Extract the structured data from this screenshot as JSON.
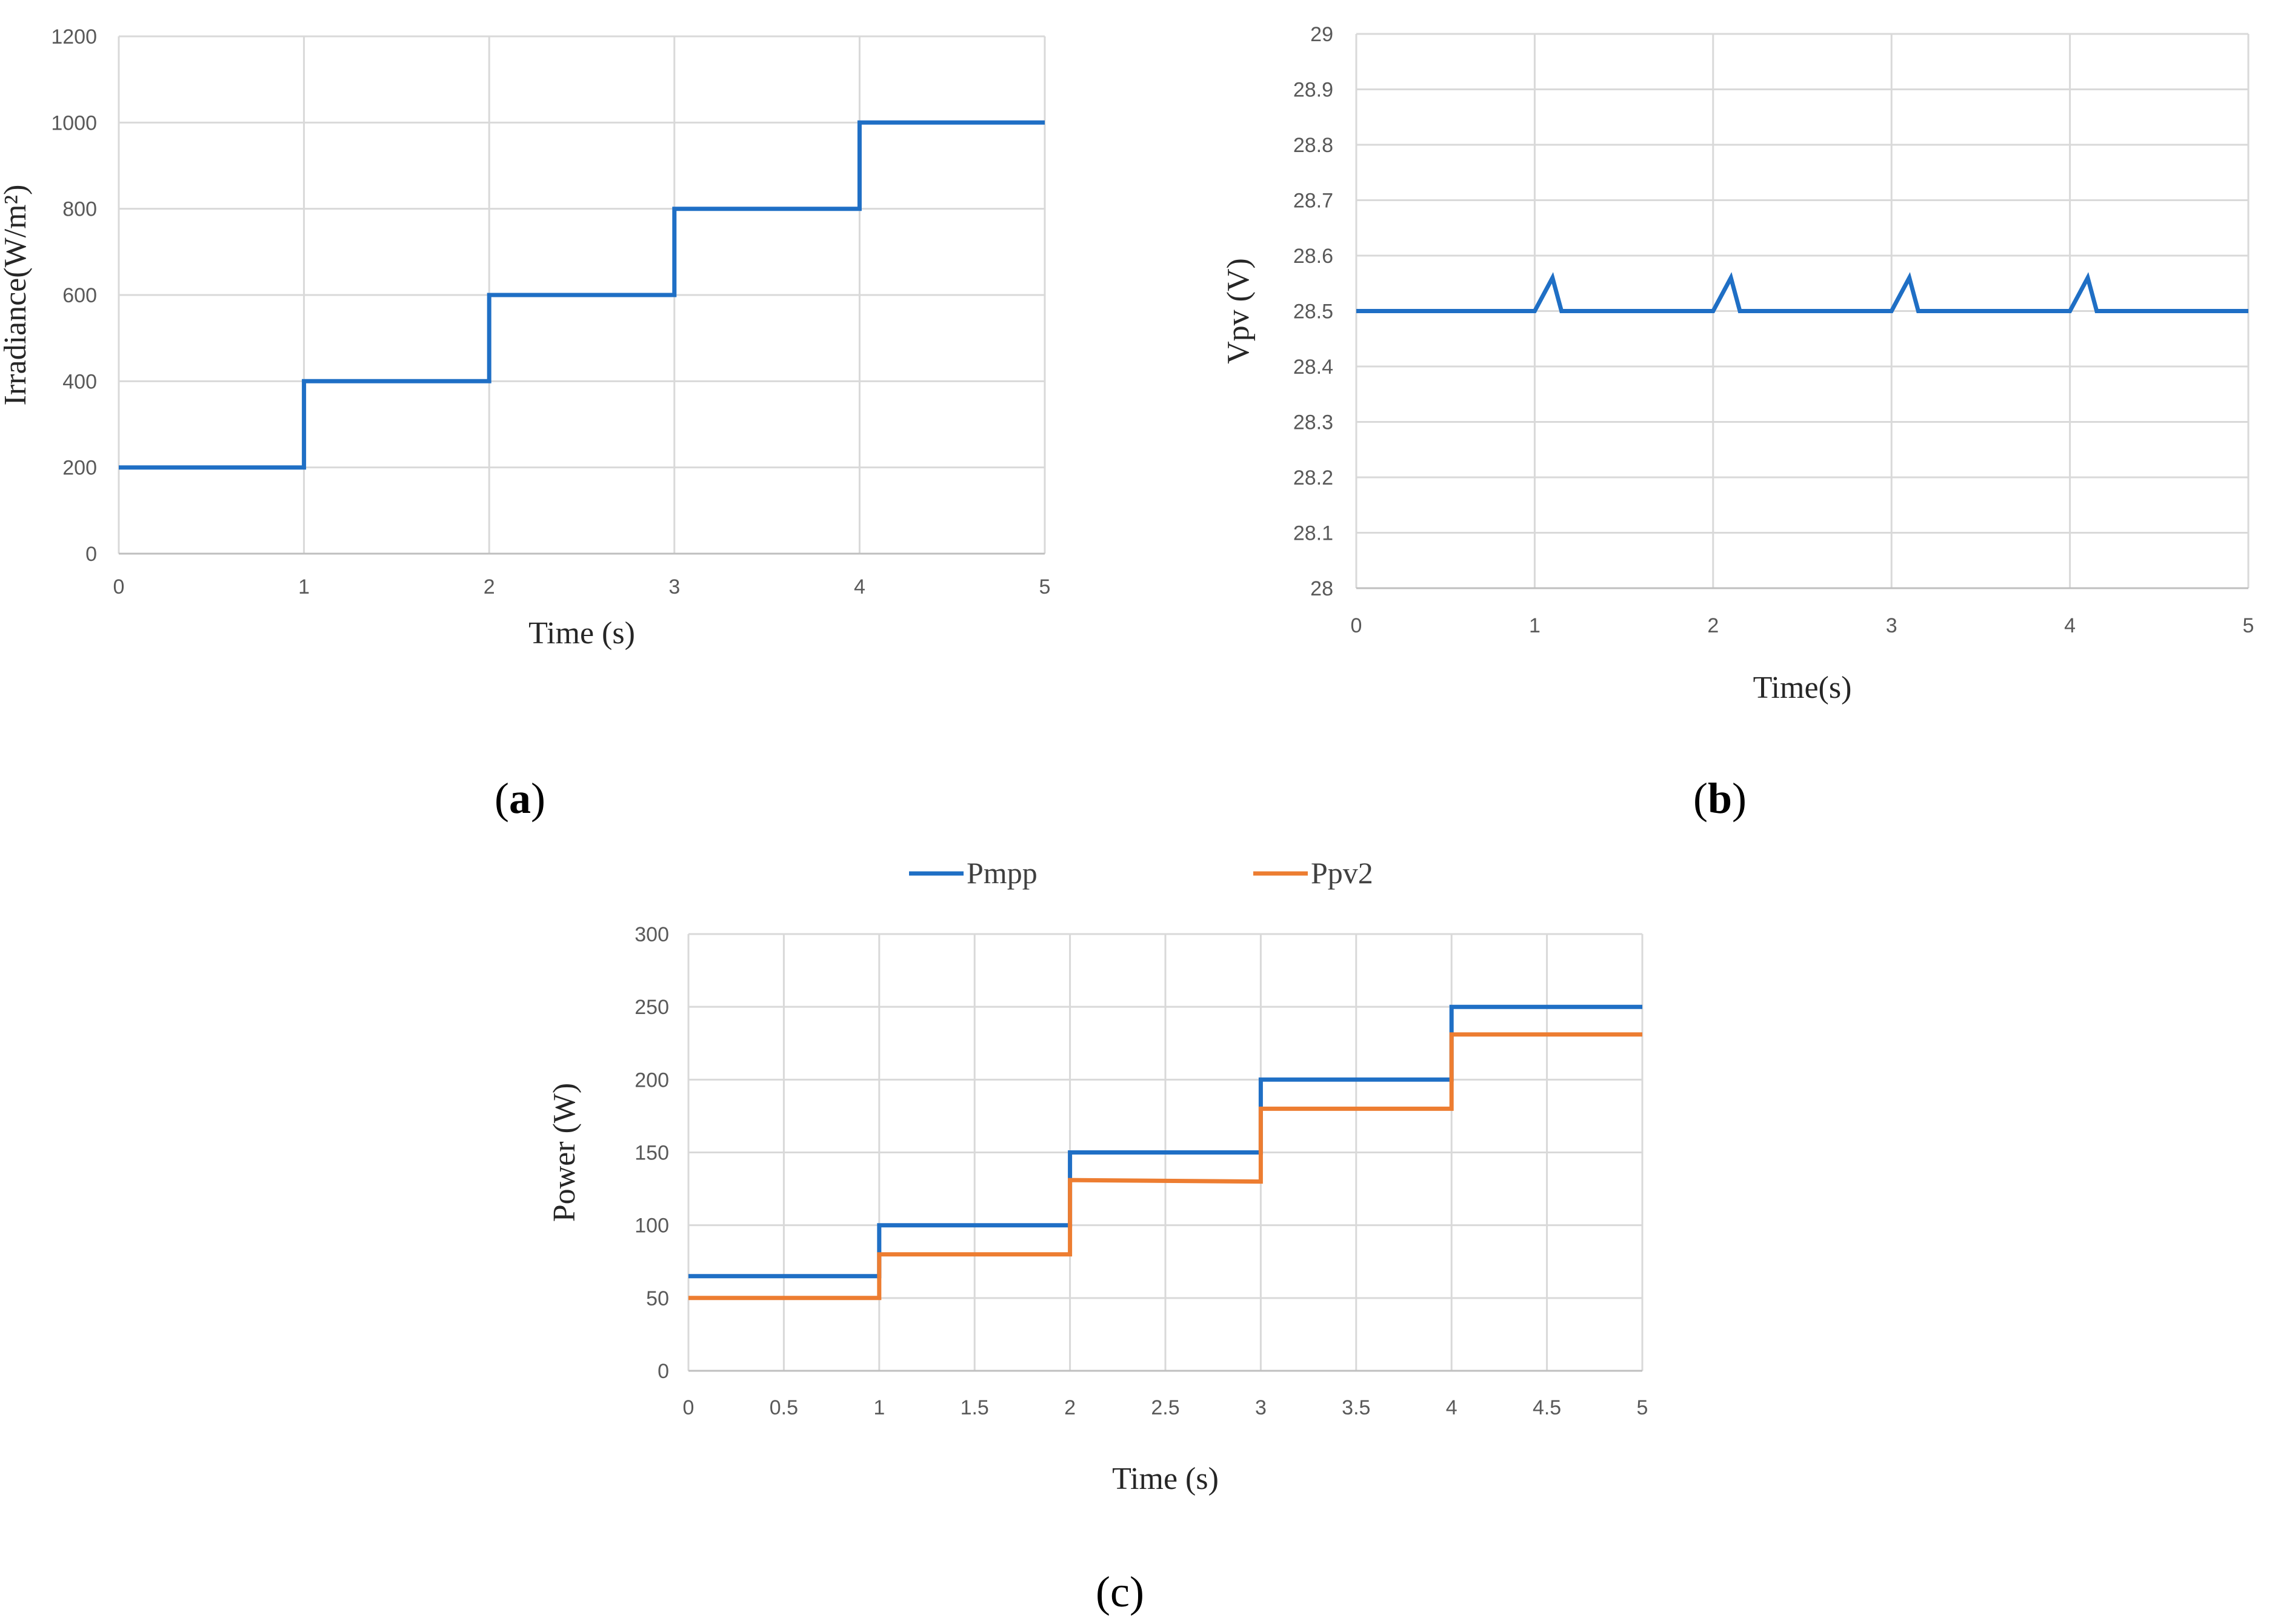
{
  "chart_data": [
    {
      "id": "a",
      "type": "line",
      "caption": "a",
      "xlabel": "Time (s)",
      "ylabel": "Irradiance(W/m²)",
      "xlim": [
        0,
        5
      ],
      "ylim": [
        0,
        1200
      ],
      "xticks": [
        0,
        1,
        2,
        3,
        4,
        5
      ],
      "yticks": [
        0,
        200,
        400,
        600,
        800,
        1000,
        1200
      ],
      "grid": true,
      "legend": "none",
      "series": [
        {
          "name": "Irradiance",
          "color": "#1f6fc5",
          "x": [
            0,
            1,
            1,
            2,
            2,
            3,
            3,
            4,
            4,
            5
          ],
          "y": [
            200,
            200,
            400,
            400,
            600,
            600,
            800,
            800,
            1000,
            1000
          ]
        }
      ]
    },
    {
      "id": "b",
      "type": "line",
      "caption": "b",
      "xlabel": "Time(s)",
      "ylabel": "Vpv (V)",
      "xlim": [
        0,
        5
      ],
      "ylim": [
        28,
        29
      ],
      "xticks": [
        0,
        1,
        2,
        3,
        4,
        5
      ],
      "yticks": [
        28,
        28.1,
        28.2,
        28.3,
        28.4,
        28.5,
        28.6,
        28.7,
        28.8,
        28.9,
        29
      ],
      "grid": true,
      "legend": "none",
      "series": [
        {
          "name": "Vpv",
          "color": "#1f6fc5",
          "x": [
            0,
            1,
            1.1,
            1.15,
            2,
            2.1,
            2.15,
            3,
            3.1,
            3.15,
            4,
            4.1,
            4.15,
            5
          ],
          "y": [
            28.5,
            28.5,
            28.56,
            28.5,
            28.5,
            28.56,
            28.5,
            28.5,
            28.56,
            28.5,
            28.5,
            28.56,
            28.5,
            28.5
          ]
        }
      ]
    },
    {
      "id": "c",
      "type": "line",
      "caption": "c",
      "xlabel": "Time (s)",
      "ylabel": "Power (W)",
      "xlim": [
        0,
        5
      ],
      "ylim": [
        0,
        300
      ],
      "xticks": [
        0,
        0.5,
        1,
        1.5,
        2,
        2.5,
        3,
        3.5,
        4,
        4.5,
        5
      ],
      "yticks": [
        0,
        50,
        100,
        150,
        200,
        250,
        300
      ],
      "grid": true,
      "legend": "top",
      "series": [
        {
          "name": "Pmpp",
          "color": "#1f6fc5",
          "x": [
            0,
            1,
            1,
            2,
            2,
            3,
            3,
            4,
            4,
            5
          ],
          "y": [
            65,
            65,
            100,
            100,
            150,
            150,
            200,
            200,
            250,
            250
          ]
        },
        {
          "name": "Ppv2",
          "color": "#ed7d31",
          "x": [
            0,
            1,
            1,
            2,
            2,
            3,
            3,
            4,
            4,
            5
          ],
          "y": [
            50,
            50,
            80,
            80,
            131,
            130,
            180,
            180,
            231,
            231
          ]
        }
      ]
    }
  ]
}
